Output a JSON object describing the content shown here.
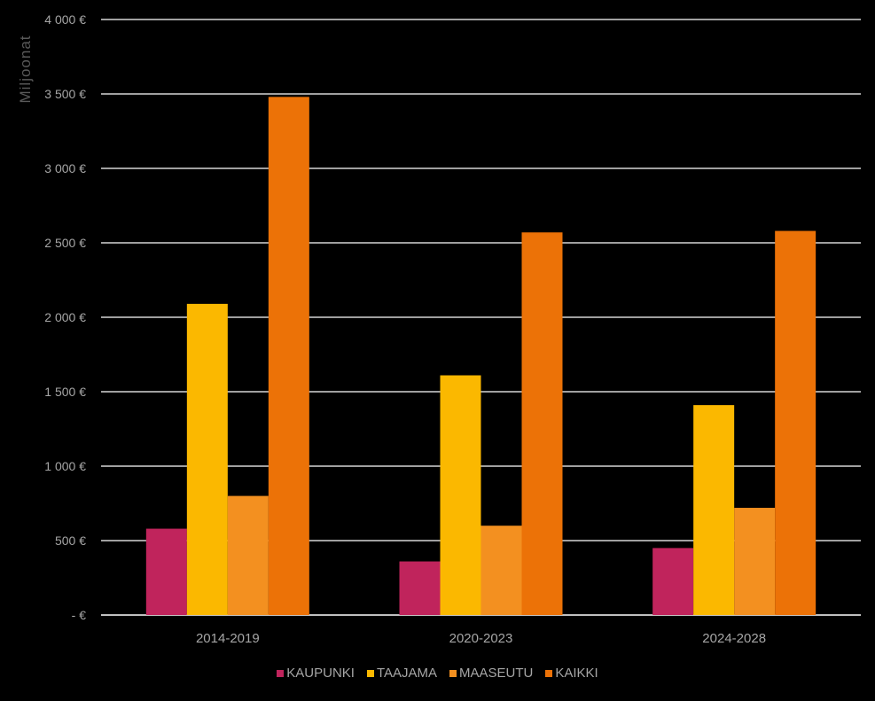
{
  "chart_data": {
    "type": "bar",
    "title": "",
    "xlabel": "",
    "ylabel": "Miljoonat",
    "ylim": [
      0,
      4000
    ],
    "y_ticks": [
      "-  €",
      "500 €",
      "1 000 €",
      "1 500 €",
      "2 000 €",
      "2 500 €",
      "3 000 €",
      "3 500 €",
      "4 000 €"
    ],
    "y_tick_values": [
      0,
      500,
      1000,
      1500,
      2000,
      2500,
      3000,
      3500,
      4000
    ],
    "grid": true,
    "legend_position": "bottom",
    "categories": [
      "2014-2019",
      "2020-2023",
      "2024-2028"
    ],
    "series": [
      {
        "name": "KAUPUNKI",
        "color": "#c0245c",
        "values": [
          580,
          360,
          450
        ]
      },
      {
        "name": "TAAJAMA",
        "color": "#fbb800",
        "values": [
          2090,
          1610,
          1410
        ]
      },
      {
        "name": "MAASEUTU",
        "color": "#f39020",
        "values": [
          800,
          600,
          720
        ]
      },
      {
        "name": "KAIKKI",
        "color": "#ec7207",
        "values": [
          3480,
          2570,
          2580
        ]
      }
    ]
  }
}
